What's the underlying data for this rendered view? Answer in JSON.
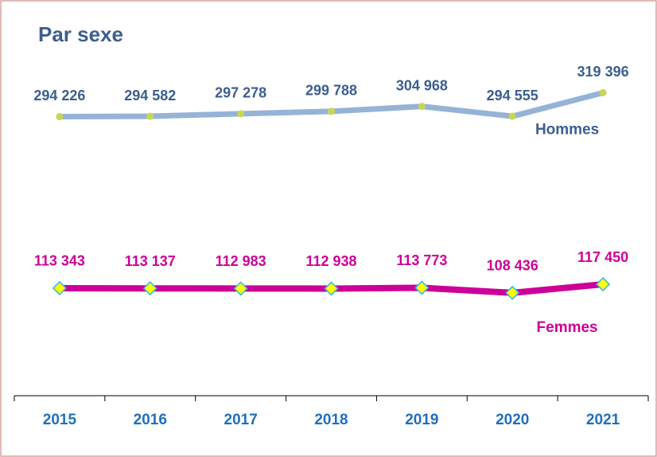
{
  "chart_data": {
    "type": "line",
    "title": "Par sexe",
    "categories": [
      "2015",
      "2016",
      "2017",
      "2018",
      "2019",
      "2020",
      "2021"
    ],
    "ylim": [
      0,
      350000
    ],
    "series": [
      {
        "name": "Hommes",
        "color": "#95b3d7",
        "marker_color": "#c9d64f",
        "label_color": "#3c5e8f",
        "values": [
          294226,
          294582,
          297278,
          299788,
          304968,
          294555,
          319396
        ],
        "value_labels": [
          "294 226",
          "294 582",
          "297 278",
          "299 788",
          "304 968",
          "294 555",
          "319 396"
        ]
      },
      {
        "name": "Femmes",
        "color": "#cc0099",
        "marker_color": "#ffff00",
        "label_color": "#cc0099",
        "values": [
          113343,
          113137,
          112983,
          112938,
          113773,
          108436,
          117450
        ],
        "value_labels": [
          "113 343",
          "113 137",
          "112 983",
          "112 938",
          "113 773",
          "108 436",
          "117 450"
        ]
      }
    ]
  }
}
